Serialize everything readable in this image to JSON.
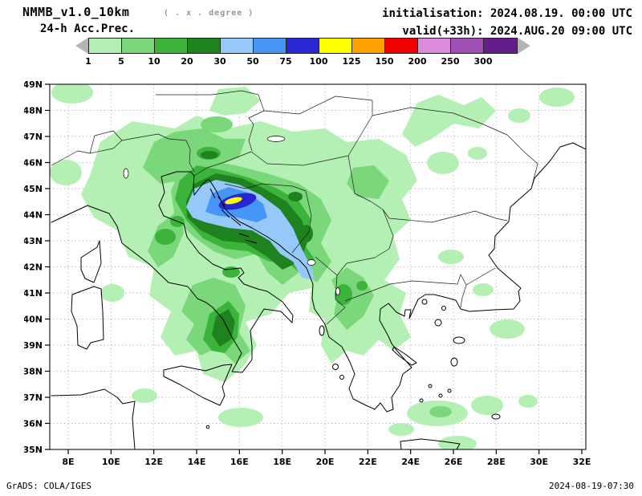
{
  "header": {
    "model": "NMMB_v1.0_10km",
    "grid_note": "( . x . degree )",
    "product": "24-h Acc.Prec.",
    "init": "initialisation: 2024.08.19.  00:00 UTC",
    "valid": "valid(+33h): 2024.AUG.20 09:00 UTC"
  },
  "legend": {
    "values": [
      "1",
      "5",
      "10",
      "20",
      "30",
      "50",
      "75",
      "100",
      "125",
      "150",
      "200",
      "250",
      "300"
    ],
    "colors": [
      "#b4f0b4",
      "#7ad87a",
      "#3cb43c",
      "#1e821e",
      "#96c8fa",
      "#4696f5",
      "#2828d2",
      "#ffff00",
      "#ffa000",
      "#f00000",
      "#dc8cdc",
      "#a050b4",
      "#641e8c"
    ],
    "arrow_color": "#b4b4b4"
  },
  "map": {
    "lat_ticks": [
      "49N",
      "48N",
      "47N",
      "46N",
      "45N",
      "44N",
      "43N",
      "42N",
      "41N",
      "40N",
      "39N",
      "38N",
      "37N",
      "36N",
      "35N"
    ],
    "lon_ticks": [
      "8E",
      "10E",
      "12E",
      "14E",
      "16E",
      "18E",
      "20E",
      "22E",
      "24E",
      "26E",
      "28E",
      "30E",
      "32E"
    ]
  },
  "chart_data": {
    "type": "filled-contour-map",
    "variable": "24-h accumulated precipitation",
    "contour_levels": [
      1,
      5,
      10,
      20,
      30,
      50,
      75,
      100,
      125,
      150,
      200,
      250,
      300
    ],
    "lon_range_deg_east": [
      8,
      32
    ],
    "lat_range_deg_north": [
      35,
      49
    ],
    "max_band_visible": "100-125",
    "max_location_approx": "44.5N 15.8E over Adriatic/Croatia"
  },
  "footer": {
    "left": "GrADS: COLA/IGES",
    "right": "2024-08-19-07:30"
  }
}
